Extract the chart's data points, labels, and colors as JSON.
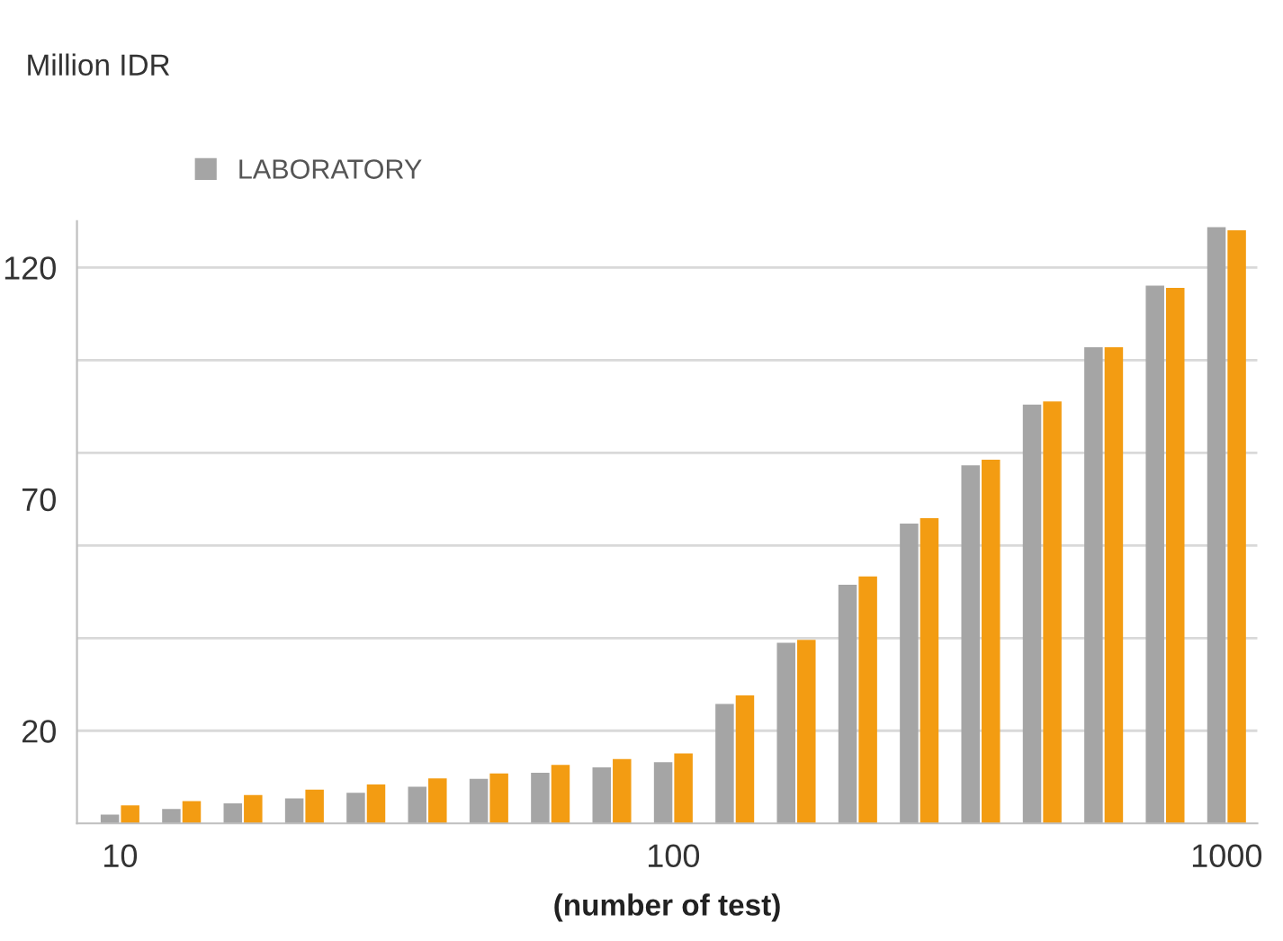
{
  "chart_data": {
    "type": "bar",
    "annotations": [
      "Million IDR"
    ],
    "xlabel": "(number of test)",
    "categories": [
      "10",
      null,
      null,
      null,
      null,
      null,
      null,
      null,
      null,
      "100",
      null,
      null,
      null,
      null,
      null,
      null,
      null,
      null,
      "1000"
    ],
    "series": [
      {
        "name": "LABORATORY",
        "color": "#a5a5a5",
        "values": [
          1.9,
          3.1,
          4.3,
          5.4,
          6.6,
          7.9,
          9.6,
          10.9,
          12.1,
          13.2,
          25.8,
          39.0,
          51.5,
          64.7,
          77.3,
          90.4,
          102.8,
          116.1,
          128.7
        ]
      },
      {
        "color": "#f39c12",
        "values": [
          3.9,
          4.8,
          6.1,
          7.3,
          8.4,
          9.7,
          10.8,
          12.6,
          13.9,
          15.1,
          27.6,
          39.6,
          53.3,
          65.9,
          78.5,
          91.1,
          102.8,
          115.6,
          128.0
        ]
      }
    ],
    "ylim": [
      0,
      130
    ],
    "yticks": [
      20,
      {
        "value": 40,
        "label": null
      },
      {
        "value": 60,
        "label": null
      },
      70,
      {
        "value": 80,
        "label": null
      },
      {
        "value": 100,
        "label": null
      },
      120
    ],
    "grid": "y",
    "legend": "top left"
  }
}
